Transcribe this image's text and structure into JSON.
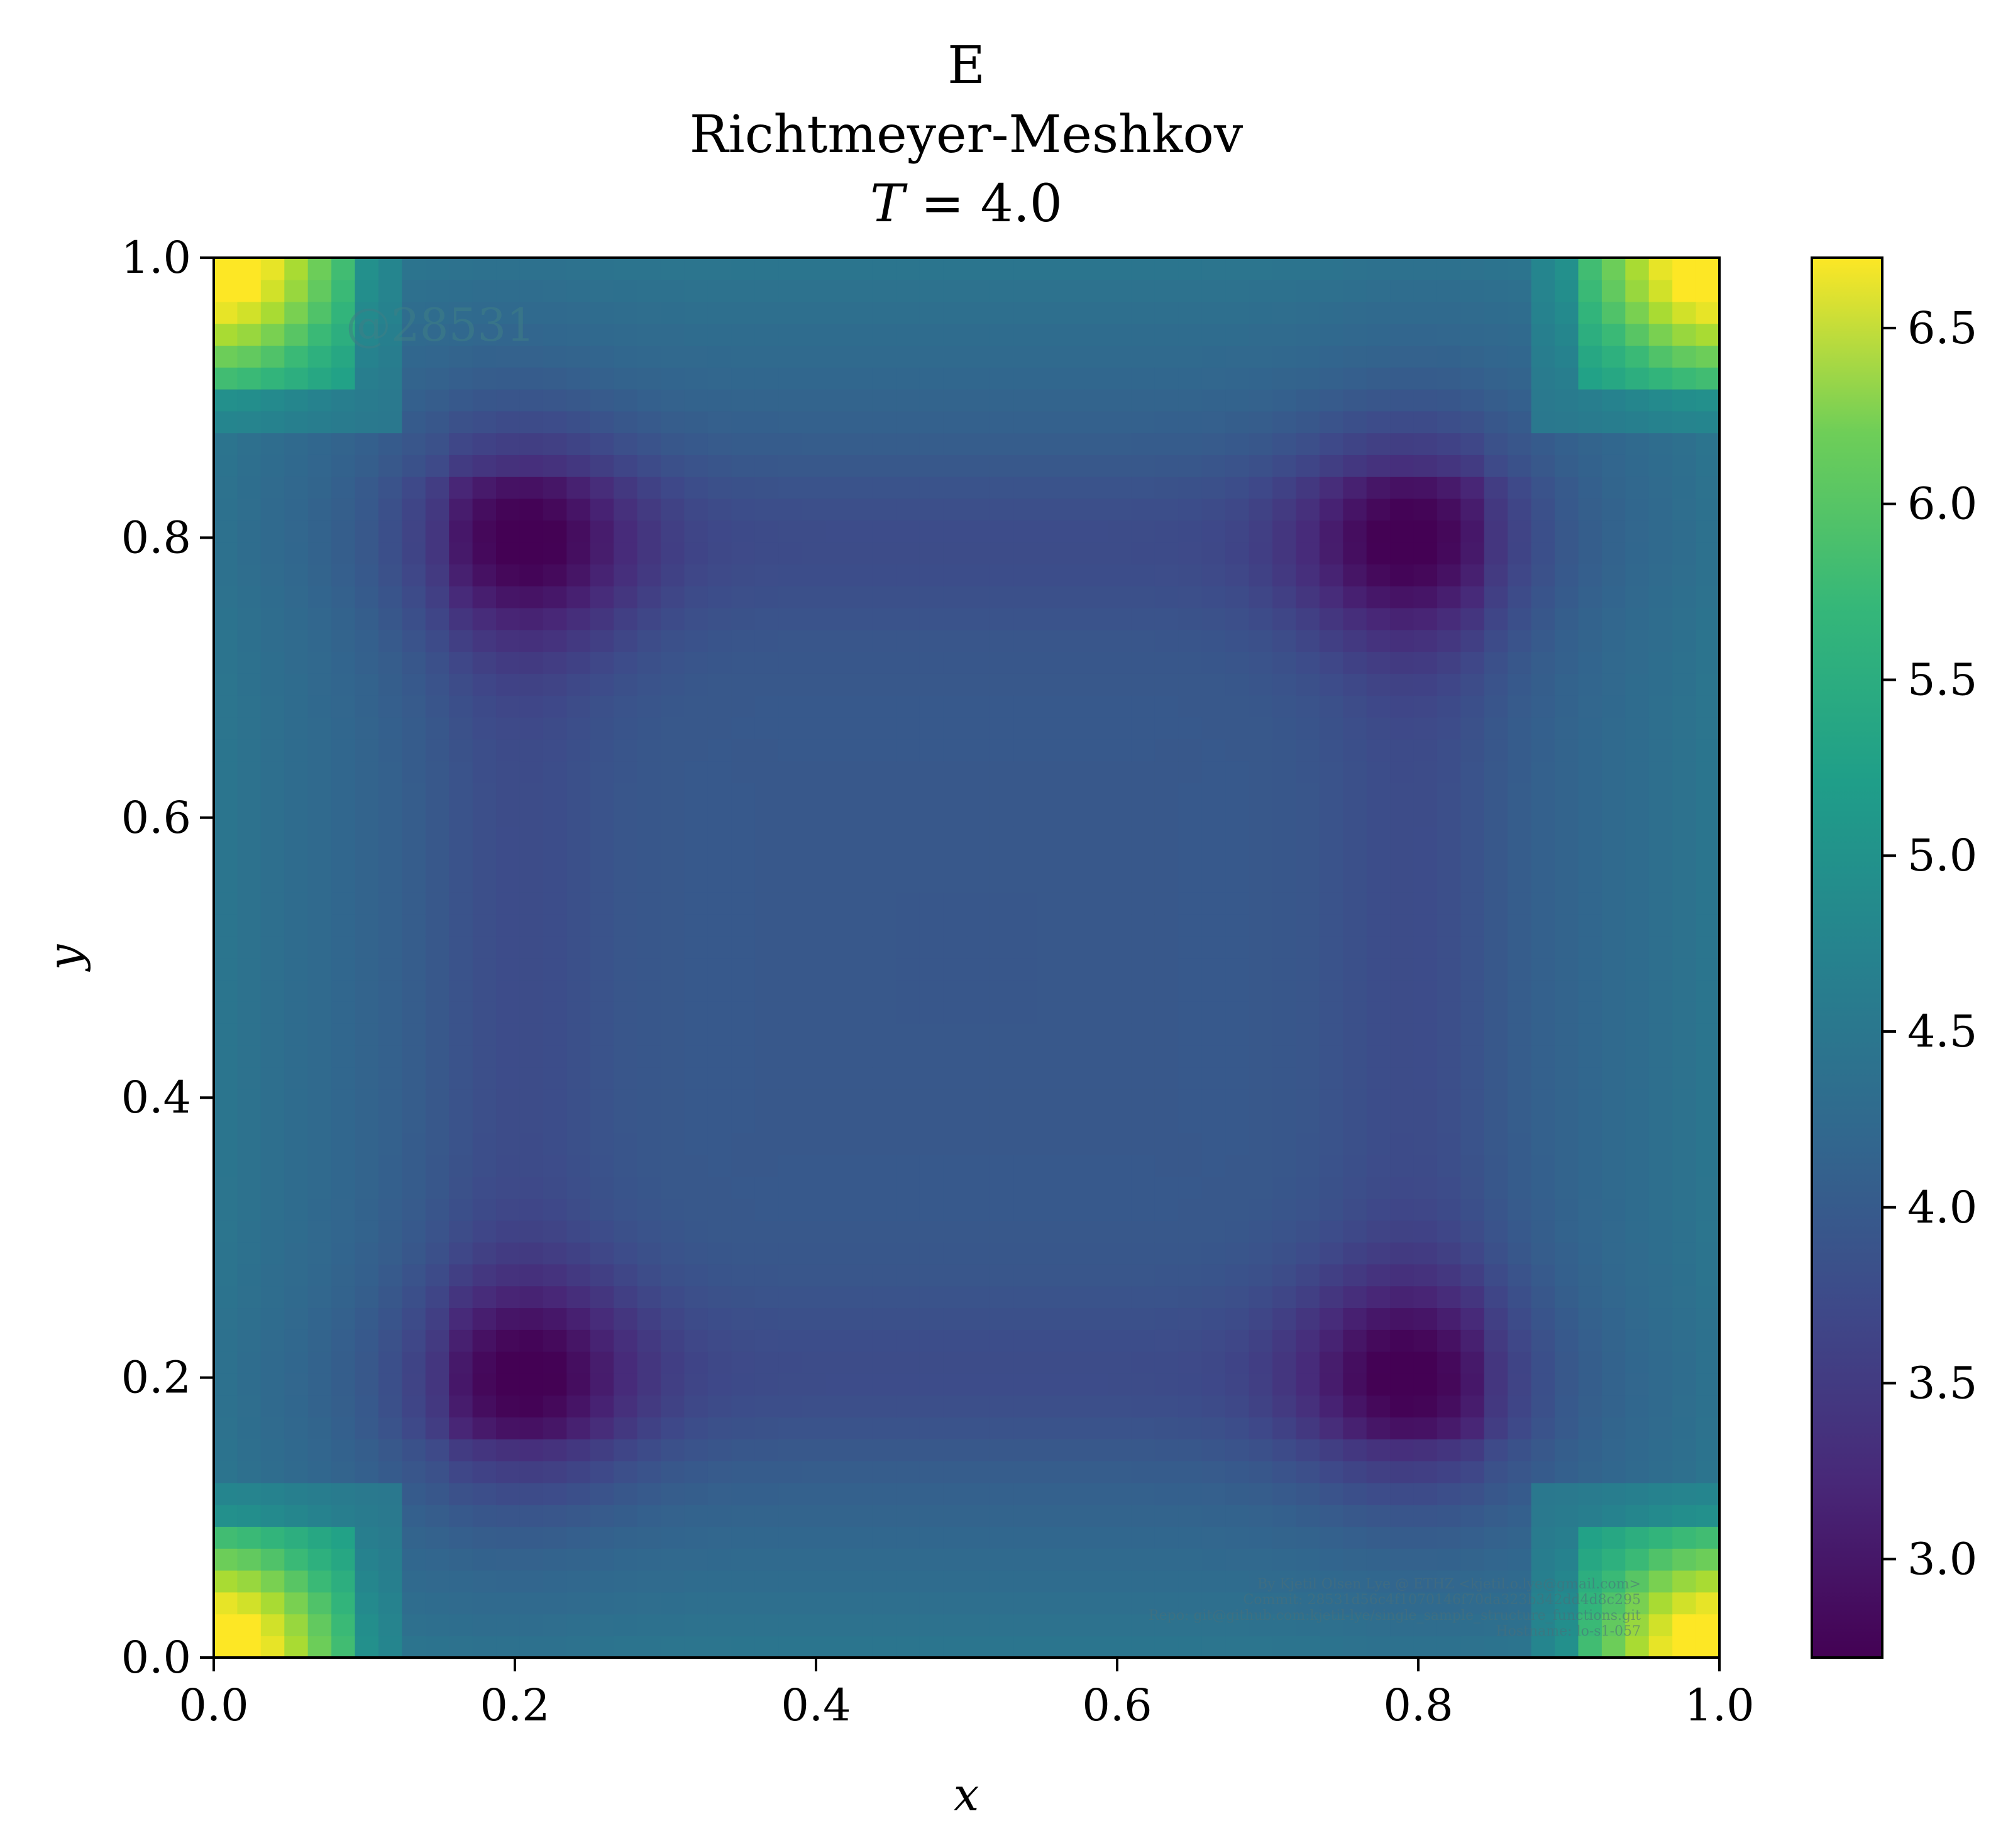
{
  "chart_data": {
    "type": "heatmap",
    "title_lines": [
      "E",
      "Richtmeyer-Meshkov",
      "T = 4.0"
    ],
    "title_var": "T",
    "title_value": "4.0",
    "xlabel": "x",
    "ylabel": "y",
    "xlim": [
      0.0,
      1.0
    ],
    "ylim": [
      0.0,
      1.0
    ],
    "x_ticks": [
      "0.0",
      "0.2",
      "0.4",
      "0.6",
      "0.8",
      "1.0"
    ],
    "y_ticks": [
      "0.0",
      "0.2",
      "0.4",
      "0.6",
      "0.8",
      "1.0"
    ],
    "colormap": "viridis",
    "colorbar": {
      "range": [
        2.72,
        6.7
      ],
      "ticks": [
        "3.0",
        "3.5",
        "4.0",
        "4.5",
        "5.0",
        "5.5",
        "6.0",
        "6.5"
      ]
    },
    "grid_resolution": 64,
    "field_description_values": {
      "corner_max": 6.6,
      "edge_value": 4.3,
      "ring_minimum": 3.05,
      "center_value": 3.8
    },
    "watermarks": {
      "sample_id": "@28531",
      "credits": [
        "By Kjetil Olsen Lye @ ETHZ <kjetil.o.lye@gmail.com>",
        "Commit: 28531d56c4f1070146f70da323b342dd4d8c295",
        "Repo: git@github.com:kjetil-lye/single_sample_structure_functions.git",
        "Hostname: lo-s1-057"
      ]
    }
  }
}
